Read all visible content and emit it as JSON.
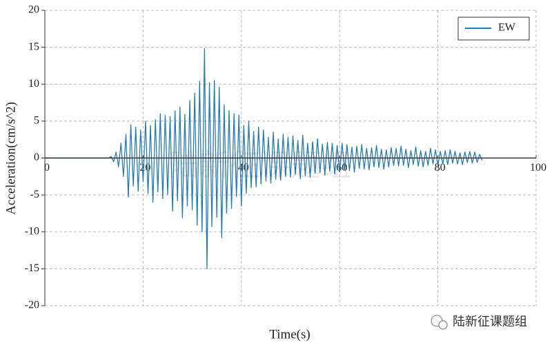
{
  "chart_data": {
    "type": "line",
    "xlabel": "Time(s)",
    "ylabel": "Acceleration(cm/s^2)",
    "watermark": "陆新征课题组",
    "x": [
      0,
      0.5,
      1,
      1.5,
      2,
      2.5,
      3,
      3.5,
      4,
      4.5,
      5,
      5.5,
      6,
      6.5,
      7,
      7.5,
      8,
      8.5,
      9,
      9.5,
      10,
      10.5,
      11,
      11.5,
      12,
      12.5,
      13,
      13.5,
      14,
      14.5,
      15,
      15.5,
      16,
      16.5,
      17,
      17.5,
      18,
      18.5,
      19,
      19.5,
      20,
      20.5,
      21,
      21.5,
      22,
      22.5,
      23,
      23.5,
      24,
      24.5,
      25,
      25.5,
      26,
      26.5,
      27,
      27.5,
      28,
      28.5,
      29,
      29.5,
      30,
      30.5,
      31,
      31.5,
      32,
      32.5,
      33,
      33.5,
      34,
      34.5,
      35,
      35.5,
      36,
      36.5,
      37,
      37.5,
      38,
      38.5,
      39,
      39.5,
      40,
      40.5,
      41,
      41.5,
      42,
      42.5,
      43,
      43.5,
      44,
      44.5,
      45,
      45.5,
      46,
      46.5,
      47,
      47.5,
      48,
      48.5,
      49,
      49.5,
      50,
      50.5,
      51,
      51.5,
      52,
      52.5,
      53,
      53.5,
      54,
      54.5,
      55,
      55.5,
      56,
      56.5,
      57,
      57.5,
      58,
      58.5,
      59,
      59.5,
      60,
      60.5,
      61,
      61.5,
      62,
      62.5,
      63,
      63.5,
      64,
      64.5,
      65,
      65.5,
      66,
      66.5,
      67,
      67.5,
      68,
      68.5,
      69,
      69.5,
      70,
      70.5,
      71,
      71.5,
      72,
      72.5,
      73,
      73.5,
      74,
      74.5,
      75,
      75.5,
      76,
      76.5,
      77,
      77.5,
      78,
      78.5,
      79,
      79.5,
      80,
      80.5,
      81,
      81.5,
      82,
      82.5,
      83,
      83.5,
      84,
      84.5,
      85,
      85.5,
      86,
      86.5,
      87,
      87.5,
      88,
      88.5,
      89
    ],
    "series": [
      {
        "name": "EW",
        "color": "#2a7ab0",
        "values": [
          0,
          0,
          0,
          0,
          0,
          0,
          0,
          0,
          0,
          0,
          0,
          0,
          0,
          0,
          0,
          0,
          0,
          0,
          0,
          0,
          0,
          0,
          0,
          0,
          0,
          0,
          0,
          0.2,
          -0.5,
          0.8,
          -1.2,
          2.0,
          -2.5,
          3.2,
          -5.3,
          4.5,
          -3.8,
          4.2,
          -4.5,
          3.8,
          -3.2,
          5.0,
          -4.8,
          4.4,
          -6.0,
          5.2,
          -4.6,
          6.0,
          -5.5,
          5.8,
          -4.9,
          5.6,
          -7.2,
          6.4,
          -5.8,
          6.9,
          -8.1,
          5.9,
          -6.5,
          7.8,
          -7.0,
          8.8,
          -9.1,
          10.4,
          -10.0,
          14.8,
          -15.0,
          10.2,
          -9.3,
          10.5,
          -8.0,
          9.6,
          -10.8,
          7.2,
          -7.5,
          6.4,
          -6.8,
          6.0,
          -5.2,
          5.8,
          -6.5,
          4.4,
          -4.8,
          5.0,
          -4.0,
          3.6,
          -3.9,
          4.2,
          -3.5,
          3.8,
          -3.1,
          2.8,
          -3.4,
          3.5,
          -2.9,
          2.6,
          -3.0,
          3.2,
          -2.5,
          2.8,
          -2.6,
          3.0,
          -2.2,
          2.4,
          -2.8,
          3.1,
          -2.4,
          2.0,
          -2.6,
          2.2,
          -2.1,
          2.6,
          -2.0,
          1.9,
          -2.3,
          2.1,
          -1.8,
          2.0,
          -2.2,
          1.7,
          -1.9,
          2.0,
          -1.6,
          1.8,
          -1.7,
          1.5,
          -1.9,
          1.6,
          -1.4,
          1.8,
          -1.5,
          1.3,
          -1.6,
          1.4,
          -1.2,
          1.7,
          -1.3,
          1.2,
          -1.5,
          1.1,
          -1.2,
          1.4,
          -1.0,
          1.3,
          -1.1,
          1.6,
          -1.0,
          1.2,
          -1.3,
          1.0,
          -0.9,
          1.5,
          -1.1,
          1.0,
          -1.2,
          0.9,
          -1.0,
          1.3,
          -0.8,
          1.1,
          -1.0,
          0.9,
          -0.8,
          1.0,
          -0.9,
          1.1,
          -0.7,
          0.9,
          -0.8,
          0.7,
          -0.9,
          0.8,
          -0.6,
          0.9,
          -0.7,
          0.8,
          -0.6,
          0.5,
          -0.3
        ]
      }
    ],
    "xlim": [
      0,
      100
    ],
    "xticks": [
      0,
      20,
      40,
      60,
      80,
      100
    ],
    "ylim": [
      -20,
      20
    ],
    "yticks": [
      -20,
      -15,
      -10,
      -5,
      0,
      5,
      10,
      15,
      20
    ],
    "grid": true,
    "legend": "upper right"
  }
}
